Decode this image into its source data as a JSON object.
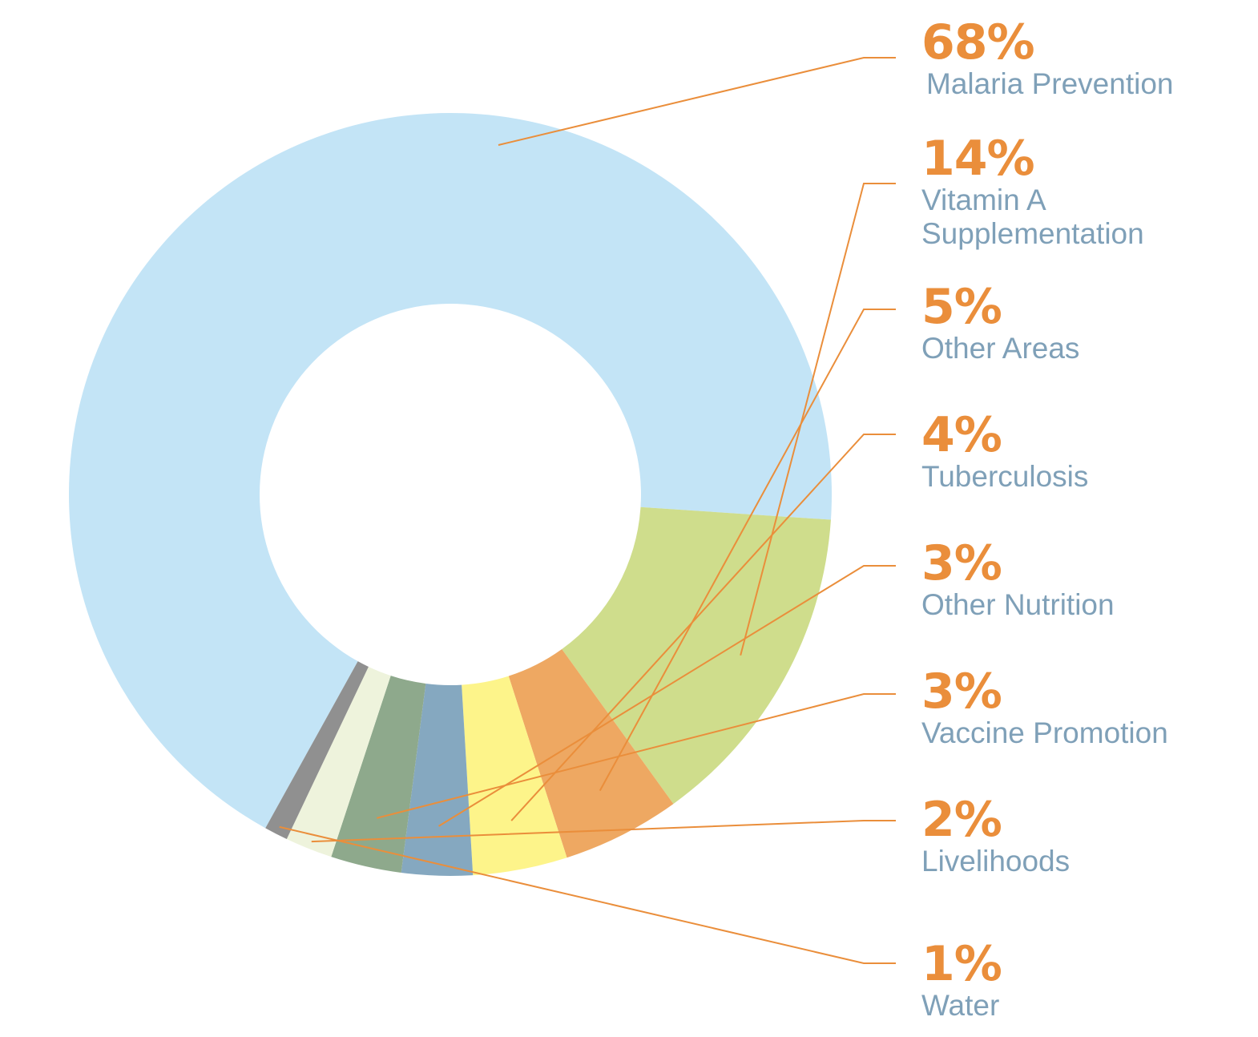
{
  "chart_data": {
    "type": "donut",
    "legend_placement": "right",
    "slices": [
      {
        "label_lines": [
          "Malaria Prevention"
        ],
        "percent_label": "68%",
        "value": 68,
        "color": "#c3e4f6"
      },
      {
        "label_lines": [
          "Vitamin A",
          "Supplementation"
        ],
        "percent_label": "14%",
        "value": 14,
        "color": "#cfdd8c"
      },
      {
        "label_lines": [
          "Other Areas"
        ],
        "percent_label": "5%",
        "value": 5,
        "color": "#eea862"
      },
      {
        "label_lines": [
          "Tuberculosis"
        ],
        "percent_label": "4%",
        "value": 4,
        "color": "#fdf48a"
      },
      {
        "label_lines": [
          "Other Nutrition"
        ],
        "percent_label": "3%",
        "value": 3,
        "color": "#85a8c0"
      },
      {
        "label_lines": [
          "Vaccine Promotion"
        ],
        "percent_label": "3%",
        "value": 3,
        "color": "#8ea98c"
      },
      {
        "label_lines": [
          "Livelihoods"
        ],
        "percent_label": "2%",
        "value": 2,
        "color": "#eef3dc"
      },
      {
        "label_lines": [
          "Water"
        ],
        "percent_label": "1%",
        "value": 1,
        "color": "#909090"
      }
    ],
    "percent_color": "#ea8e3b",
    "label_color": "#7fa0b8",
    "leader_color": "#ea8e3b"
  }
}
